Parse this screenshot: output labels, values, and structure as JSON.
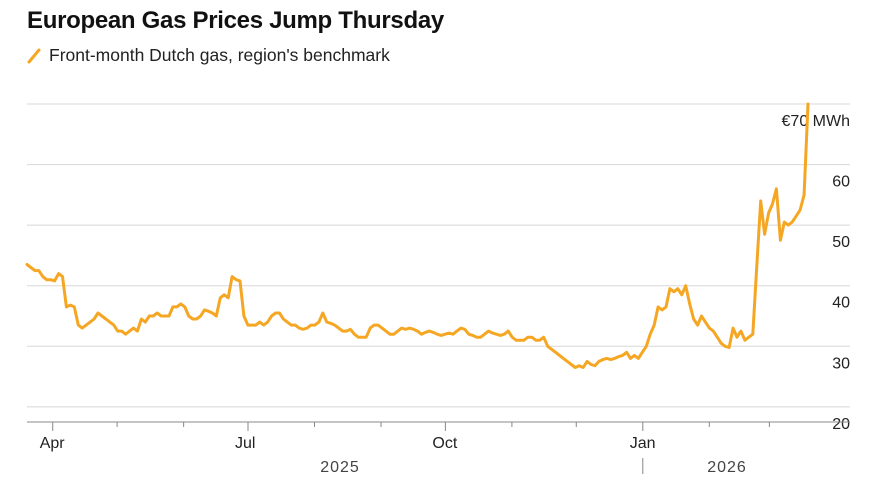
{
  "header": {
    "title": "European Gas Prices Jump Thursday",
    "legend_label": "Front-month Dutch gas, region's benchmark"
  },
  "colors": {
    "series": "#f5a623",
    "grid": "#d8d8d8",
    "axis": "#888888"
  },
  "chart_data": {
    "type": "line",
    "title": "European Gas Prices Jump Thursday",
    "series": [
      {
        "name": "Front-month Dutch gas, region's benchmark",
        "values": [
          43.5,
          43,
          42.5,
          42.5,
          41.5,
          41,
          41,
          40.8,
          42,
          41.5,
          36.5,
          36.8,
          36.5,
          33.5,
          33,
          33.5,
          34,
          34.5,
          35.5,
          35,
          34.5,
          34,
          33.5,
          32.5,
          32.5,
          32,
          32.5,
          33,
          32.5,
          34.5,
          34,
          35,
          35,
          35.5,
          35,
          35,
          35,
          36.5,
          36.5,
          37,
          36.5,
          35,
          34.5,
          34.5,
          35,
          36,
          35.8,
          35.5,
          35,
          38,
          38.5,
          38,
          41.5,
          41,
          40.8,
          35,
          33.5,
          33.5,
          33.5,
          34,
          33.5,
          34,
          35,
          35.5,
          35.5,
          34.5,
          34,
          33.5,
          33.5,
          33,
          32.8,
          33,
          33.5,
          33.5,
          34,
          35.5,
          34,
          33.8,
          33.5,
          33,
          32.5,
          32.5,
          32.8,
          32,
          31.5,
          31.5,
          31.5,
          33,
          33.5,
          33.5,
          33,
          32.5,
          32,
          32,
          32.5,
          33,
          32.8,
          33,
          32.8,
          32.5,
          32,
          32.3,
          32.5,
          32.3,
          32,
          31.8,
          32,
          32.2,
          32,
          32.5,
          33,
          32.8,
          32,
          31.8,
          31.5,
          31.5,
          32,
          32.5,
          32.2,
          32,
          31.8,
          32,
          32.5,
          31.5,
          31,
          31,
          31,
          31.5,
          31.5,
          31,
          31,
          31.5,
          30,
          29.5,
          29,
          28.5,
          28,
          27.5,
          27,
          26.5,
          26.8,
          26.5,
          27.5,
          27,
          26.8,
          27.5,
          27.8,
          28,
          27.8,
          28,
          28.3,
          28.5,
          29,
          28,
          28.5,
          28,
          29,
          30,
          32,
          33.5,
          36.5,
          36,
          36.5,
          39.5,
          39,
          39.5,
          38.5,
          40,
          37,
          34.5,
          33.5,
          35,
          34,
          33,
          32.5,
          31.5,
          30.5,
          30,
          29.8,
          33,
          31.5,
          32.5,
          31,
          31.5,
          32,
          43,
          54,
          48.5,
          52,
          53.5,
          56,
          47.5,
          50.5,
          50,
          50.5,
          51.5,
          52.5,
          55,
          70
        ],
        "start_date": "2025-03-20",
        "end_date": "2026-03-19"
      }
    ],
    "xticks": [
      {
        "label": "Apr",
        "date": "2025-04-01"
      },
      {
        "label": "Jul",
        "date": "2025-07-01"
      },
      {
        "label": "Oct",
        "date": "2025-10-01"
      },
      {
        "label": "Jan",
        "date": "2026-01-01"
      }
    ],
    "year_labels": [
      "2025",
      "2026"
    ],
    "yticks": [
      20,
      30,
      40,
      50,
      60,
      70
    ],
    "ytick_labels": [
      "20",
      "30",
      "40",
      "50",
      "60",
      "€70 MWh"
    ],
    "ylim": [
      17.5,
      70
    ],
    "ylabel": "€ MWh",
    "xlabel": ""
  }
}
